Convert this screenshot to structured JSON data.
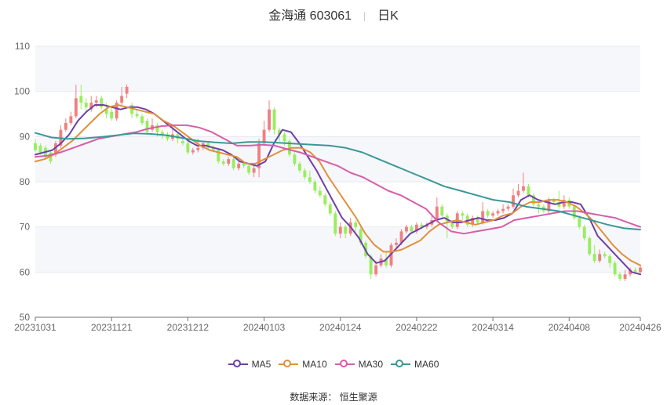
{
  "title": {
    "name": "金海通 603061",
    "period": "日K"
  },
  "source": "数据来源： 恒生聚源",
  "colors": {
    "up": "#f08080",
    "down": "#98ee5e",
    "ma5": "#6e3fa7",
    "ma10": "#e1903b",
    "ma30": "#d65ea8",
    "ma60": "#3a9896",
    "grid": "#e6e9f0",
    "band": "#f6f7fb"
  },
  "chart_data": {
    "type": "candlestick",
    "ylim": [
      50,
      110
    ],
    "yticks": [
      50,
      60,
      70,
      80,
      90,
      100,
      110
    ],
    "xtick_labels": [
      "20231031",
      "20231121",
      "20231212",
      "20240103",
      "20240124",
      "20240222",
      "20240314",
      "20240408",
      "20240426"
    ],
    "xtick_index": [
      0,
      15,
      30,
      45,
      60,
      75,
      90,
      105,
      119
    ],
    "legend": [
      "MA5",
      "MA10",
      "MA30",
      "MA60"
    ],
    "candles": [
      [
        88.5,
        87.0,
        89.5,
        86.5
      ],
      [
        88.0,
        86.5,
        88.5,
        86.0
      ],
      [
        87.5,
        85.5,
        88.0,
        85.0
      ],
      [
        86.5,
        84.5,
        87.0,
        84.0
      ],
      [
        86.0,
        88.5,
        89.0,
        85.5
      ],
      [
        88.0,
        91.5,
        92.5,
        87.5
      ],
      [
        91.5,
        93.0,
        94.0,
        91.0
      ],
      [
        93.0,
        94.5,
        95.5,
        92.5
      ],
      [
        94.5,
        98.5,
        101.5,
        94.0
      ],
      [
        99.0,
        97.5,
        101.5,
        96.0
      ],
      [
        97.5,
        96.5,
        98.5,
        95.5
      ],
      [
        96.0,
        97.5,
        99.0,
        95.5
      ],
      [
        97.5,
        98.0,
        99.0,
        96.5
      ],
      [
        98.5,
        96.5,
        99.0,
        96.0
      ],
      [
        96.0,
        95.0,
        97.5,
        94.0
      ],
      [
        95.5,
        94.0,
        96.5,
        93.5
      ],
      [
        94.0,
        97.5,
        98.0,
        93.5
      ],
      [
        97.5,
        99.0,
        101.0,
        97.0
      ],
      [
        99.5,
        101.0,
        101.5,
        98.5
      ],
      [
        97.0,
        95.0,
        97.5,
        94.0
      ],
      [
        95.0,
        94.5,
        96.0,
        94.0
      ],
      [
        94.5,
        93.0,
        95.0,
        92.5
      ],
      [
        93.5,
        91.0,
        94.0,
        90.5
      ],
      [
        91.5,
        92.5,
        94.0,
        91.0
      ],
      [
        92.5,
        91.0,
        93.0,
        90.0
      ],
      [
        91.0,
        90.5,
        91.5,
        89.5
      ],
      [
        90.5,
        89.5,
        91.0,
        89.0
      ],
      [
        89.5,
        90.5,
        92.5,
        89.0
      ],
      [
        90.5,
        89.5,
        91.0,
        88.5
      ],
      [
        89.0,
        88.5,
        90.0,
        88.0
      ],
      [
        88.5,
        86.5,
        89.0,
        86.0
      ],
      [
        86.5,
        87.0,
        87.5,
        86.0
      ],
      [
        87.0,
        87.5,
        89.5,
        86.5
      ],
      [
        87.5,
        88.5,
        89.0,
        87.0
      ],
      [
        88.5,
        87.5,
        89.0,
        87.0
      ],
      [
        87.5,
        87.0,
        88.0,
        86.5
      ],
      [
        87.0,
        84.5,
        87.5,
        84.0
      ],
      [
        84.5,
        84.0,
        85.0,
        83.5
      ],
      [
        84.0,
        85.0,
        85.5,
        83.5
      ],
      [
        85.0,
        83.0,
        85.5,
        82.5
      ],
      [
        83.0,
        84.0,
        85.0,
        82.5
      ],
      [
        84.0,
        83.5,
        84.5,
        83.0
      ],
      [
        83.5,
        82.0,
        84.0,
        81.5
      ],
      [
        82.0,
        83.0,
        83.5,
        81.0
      ],
      [
        83.0,
        88.5,
        89.5,
        81.0
      ],
      [
        88.5,
        91.5,
        93.5,
        88.0
      ],
      [
        91.5,
        96.0,
        98.0,
        91.0
      ],
      [
        96.0,
        91.5,
        96.5,
        90.5
      ],
      [
        91.5,
        90.5,
        92.0,
        89.0
      ],
      [
        90.5,
        89.0,
        91.0,
        88.0
      ],
      [
        89.0,
        86.0,
        89.5,
        85.5
      ],
      [
        86.0,
        84.0,
        86.5,
        83.5
      ],
      [
        84.0,
        82.5,
        84.5,
        82.0
      ],
      [
        82.5,
        81.0,
        83.0,
        80.5
      ],
      [
        81.0,
        80.0,
        82.5,
        79.5
      ],
      [
        80.0,
        78.0,
        80.5,
        77.5
      ],
      [
        78.0,
        77.0,
        79.0,
        76.5
      ],
      [
        77.0,
        75.0,
        77.5,
        74.5
      ],
      [
        75.0,
        73.0,
        75.5,
        72.5
      ],
      [
        73.0,
        68.5,
        73.5,
        68.0
      ],
      [
        68.5,
        70.0,
        71.0,
        67.5
      ],
      [
        70.0,
        68.5,
        70.5,
        67.5
      ],
      [
        68.5,
        71.0,
        72.0,
        68.0
      ],
      [
        71.0,
        70.0,
        71.5,
        69.0
      ],
      [
        69.5,
        66.5,
        70.0,
        66.0
      ],
      [
        66.5,
        63.5,
        67.0,
        63.0
      ],
      [
        63.5,
        59.5,
        64.0,
        58.5
      ],
      [
        59.5,
        61.5,
        62.5,
        59.0
      ],
      [
        61.5,
        63.0,
        64.0,
        61.0
      ],
      [
        63.0,
        61.5,
        64.5,
        61.0
      ],
      [
        61.5,
        66.0,
        66.5,
        61.0
      ],
      [
        66.0,
        66.5,
        67.5,
        65.5
      ],
      [
        66.5,
        69.0,
        69.5,
        66.0
      ],
      [
        69.0,
        70.0,
        70.5,
        68.5
      ],
      [
        70.0,
        69.0,
        70.5,
        68.5
      ],
      [
        69.0,
        70.5,
        71.0,
        68.5
      ],
      [
        70.5,
        70.0,
        71.0,
        69.5
      ],
      [
        70.0,
        70.5,
        71.0,
        69.5
      ],
      [
        70.5,
        71.5,
        72.5,
        70.0
      ],
      [
        71.5,
        74.5,
        76.5,
        71.0
      ],
      [
        74.5,
        72.5,
        75.0,
        72.0
      ],
      [
        72.5,
        71.0,
        73.0,
        67.5
      ],
      [
        71.0,
        70.0,
        71.5,
        69.5
      ],
      [
        70.0,
        73.0,
        73.5,
        69.5
      ],
      [
        73.0,
        72.5,
        73.5,
        71.5
      ],
      [
        72.5,
        70.5,
        73.0,
        70.0
      ],
      [
        70.5,
        72.0,
        72.5,
        70.0
      ],
      [
        72.0,
        71.0,
        72.5,
        70.5
      ],
      [
        71.0,
        73.5,
        75.5,
        70.5
      ],
      [
        73.5,
        72.5,
        74.0,
        72.0
      ],
      [
        72.5,
        73.0,
        73.5,
        72.0
      ],
      [
        73.0,
        73.5,
        74.0,
        72.5
      ],
      [
        73.5,
        74.0,
        75.0,
        73.0
      ],
      [
        74.0,
        74.5,
        75.0,
        73.5
      ],
      [
        74.5,
        77.0,
        78.5,
        74.0
      ],
      [
        77.0,
        78.0,
        79.5,
        76.5
      ],
      [
        78.0,
        79.0,
        82.0,
        77.5
      ],
      [
        79.0,
        77.0,
        79.5,
        76.5
      ],
      [
        77.0,
        75.0,
        77.5,
        74.5
      ],
      [
        75.0,
        74.5,
        75.5,
        73.0
      ],
      [
        74.5,
        73.5,
        75.0,
        73.0
      ],
      [
        73.5,
        76.0,
        76.5,
        73.0
      ],
      [
        76.0,
        75.5,
        76.5,
        75.0
      ],
      [
        75.5,
        74.5,
        78.0,
        74.0
      ],
      [
        74.5,
        76.0,
        77.0,
        74.0
      ],
      [
        76.0,
        74.5,
        76.5,
        74.0
      ],
      [
        74.5,
        72.0,
        75.0,
        71.5
      ],
      [
        72.0,
        70.0,
        72.5,
        69.5
      ],
      [
        70.0,
        67.5,
        70.5,
        67.0
      ],
      [
        67.5,
        64.0,
        68.0,
        63.5
      ],
      [
        64.0,
        62.5,
        66.0,
        62.0
      ],
      [
        62.5,
        64.0,
        65.0,
        62.0
      ],
      [
        64.0,
        63.5,
        64.5,
        63.0
      ],
      [
        63.5,
        62.0,
        64.0,
        61.0
      ],
      [
        62.0,
        59.5,
        62.5,
        59.0
      ],
      [
        59.5,
        58.5,
        60.0,
        58.0
      ],
      [
        58.5,
        59.5,
        60.5,
        58.0
      ],
      [
        59.5,
        60.5,
        61.0,
        59.0
      ],
      [
        60.5,
        60.0,
        61.0,
        59.5
      ],
      [
        60.0,
        61.0,
        61.5,
        59.5
      ]
    ],
    "series": [
      {
        "name": "MA5",
        "values": [
          86.0,
          86.5,
          87.0,
          88.5,
          90.5,
          93.5,
          95.5,
          97.0,
          97.0,
          96.5,
          96.0,
          96.5,
          96.5,
          96.0,
          95.0,
          93.5,
          92.0,
          90.5,
          89.0,
          88.0,
          88.0,
          87.5,
          87.0,
          86.0,
          84.5,
          84.0,
          83.5,
          84.5,
          88.5,
          91.5,
          91.0,
          88.5,
          85.5,
          82.5,
          79.0,
          75.5,
          72.0,
          70.0,
          67.5,
          64.0,
          62.0,
          62.5,
          64.5,
          66.5,
          68.5,
          69.5,
          70.5,
          71.5,
          72.0,
          71.0,
          71.0,
          71.5,
          72.0,
          71.5,
          71.5,
          72.0,
          73.0,
          76.0,
          77.0,
          76.0,
          75.5,
          75.0,
          75.5,
          75.5,
          75.0,
          72.0,
          68.0,
          66.0,
          64.0,
          62.0,
          60.0,
          59.5
        ]
      },
      {
        "name": "MA10",
        "values": [
          84.5,
          85.0,
          86.0,
          87.5,
          89.0,
          91.0,
          93.0,
          95.0,
          96.5,
          97.0,
          96.5,
          96.0,
          95.5,
          95.0,
          93.5,
          92.5,
          91.0,
          89.5,
          88.0,
          87.0,
          86.5,
          86.0,
          85.5,
          84.0,
          84.0,
          85.0,
          86.0,
          87.0,
          87.5,
          87.5,
          86.5,
          84.5,
          81.0,
          78.0,
          75.0,
          72.0,
          68.5,
          66.0,
          64.5,
          64.5,
          65.0,
          66.0,
          67.0,
          69.0,
          70.5,
          71.0,
          71.5,
          71.0,
          70.5,
          71.0,
          71.5,
          72.5,
          73.0,
          74.5,
          75.5,
          75.5,
          76.0,
          76.0,
          75.5,
          74.5,
          73.0,
          71.0,
          68.5,
          66.0,
          64.0,
          62.5,
          61.5
        ]
      },
      {
        "name": "MA30",
        "values": [
          85.5,
          85.8,
          86.5,
          87.5,
          88.5,
          89.5,
          90.0,
          90.5,
          91.0,
          91.8,
          92.3,
          92.5,
          92.5,
          92.0,
          91.0,
          89.5,
          88.0,
          88.0,
          88.2,
          88.0,
          87.2,
          86.5,
          85.5,
          84.5,
          83.5,
          82.0,
          81.0,
          79.5,
          78.0,
          77.0,
          75.5,
          74.0,
          71.0,
          69.0,
          68.5,
          69.0,
          69.5,
          70.0,
          71.5,
          72.0,
          72.5,
          73.0,
          73.5,
          73.5,
          73.0,
          72.5,
          72.0,
          71.0,
          70.0
        ]
      },
      {
        "name": "MA60",
        "values": [
          90.8,
          89.8,
          89.5,
          89.6,
          89.9,
          90.3,
          90.7,
          90.6,
          90.3,
          89.7,
          89.0,
          88.7,
          88.5,
          88.8,
          88.8,
          88.6,
          88.4,
          88.2,
          88.0,
          87.5,
          86.5,
          85.0,
          83.5,
          82.0,
          80.5,
          79.0,
          78.0,
          77.0,
          76.0,
          75.5,
          74.5,
          74.0,
          73.5,
          72.5,
          71.5,
          70.5,
          69.7,
          69.4
        ]
      }
    ]
  }
}
